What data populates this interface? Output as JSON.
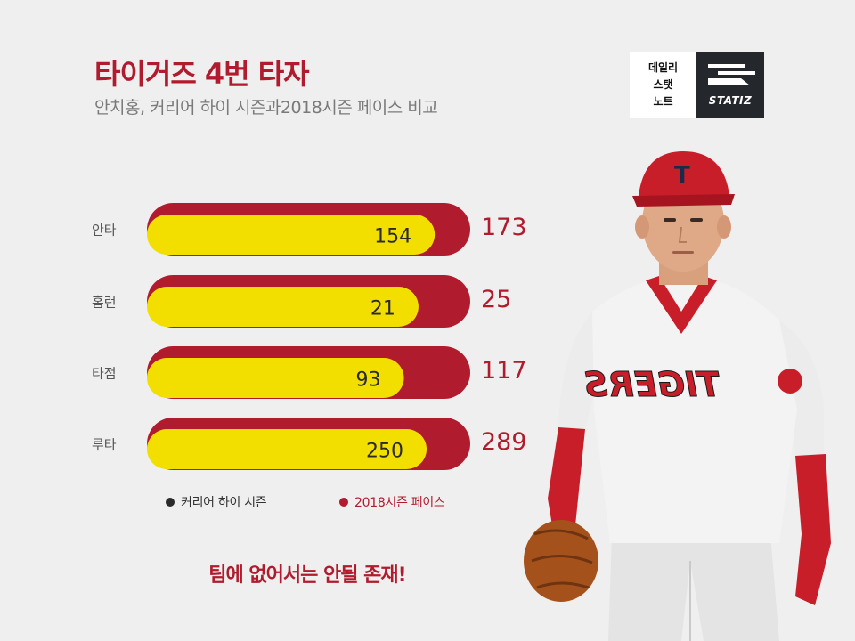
{
  "header": {
    "title": "타이거즈 4번 타자",
    "subtitle": "안치홍, 커리어 하이 시즌과2018시즌 페이스 비교"
  },
  "logo": {
    "korean_lines": [
      "데일리",
      "스탯",
      "노트"
    ],
    "wordmark": "STATIZ"
  },
  "chart_data": {
    "type": "bar",
    "orientation": "horizontal",
    "categories": [
      "안타",
      "홈런",
      "타점",
      "루타"
    ],
    "series": [
      {
        "name": "커리어 하이 시즌",
        "values": [
          154,
          21,
          93,
          250
        ],
        "color": "#f2df00"
      },
      {
        "name": "2018시즌 페이스",
        "values": [
          173,
          25,
          117,
          289
        ],
        "color": "#b01b2e"
      }
    ],
    "legend_position": "bottom",
    "grid": false
  },
  "legend": {
    "items": [
      {
        "label": "커리어 하이 시즌",
        "dot_color": "#2a2a2a",
        "text_color": "#333333"
      },
      {
        "label": "2018시즌 페이스",
        "dot_color": "#b01b2e",
        "text_color": "#b01b2e"
      }
    ]
  },
  "tagline": "팀에 없어서는 안될 존재!",
  "colors": {
    "accent_red": "#b01b2e",
    "bar_yellow": "#f2df00",
    "background": "#efefef"
  },
  "player": {
    "cap_letter": "T",
    "jersey_text": "TIGERS"
  }
}
